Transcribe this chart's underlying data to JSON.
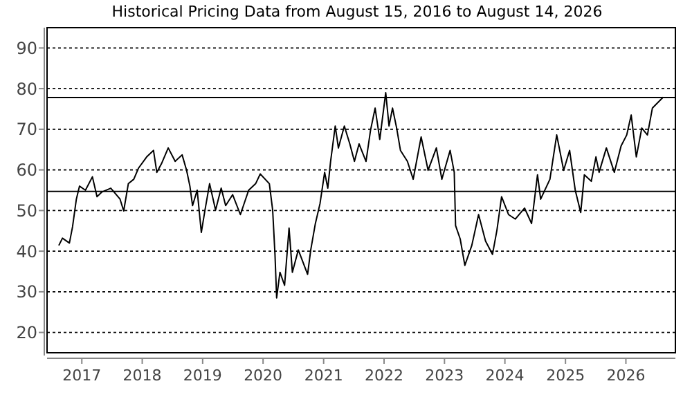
{
  "chart_data": {
    "type": "line",
    "title": "Historical Pricing Data from August 15, 2016 to August 14, 2026",
    "x": [
      "2016-08-15",
      "2016-09-06",
      "2016-10-18",
      "2016-11-06",
      "2016-11-29",
      "2016-12-18",
      "2017-01-23",
      "2017-03-06",
      "2017-04-03",
      "2017-04-30",
      "2017-06-25",
      "2017-08-20",
      "2017-09-11",
      "2017-10-09",
      "2017-11-11",
      "2017-12-09",
      "2018-01-28",
      "2018-03-10",
      "2018-03-30",
      "2018-04-27",
      "2018-06-07",
      "2018-07-19",
      "2018-08-30",
      "2018-09-26",
      "2018-10-16",
      "2018-11-01",
      "2018-11-29",
      "2018-12-24",
      "2019-01-15",
      "2019-02-12",
      "2019-03-20",
      "2019-04-23",
      "2019-05-20",
      "2019-07-01",
      "2019-08-17",
      "2019-10-06",
      "2019-11-17",
      "2019-12-15",
      "2020-02-08",
      "2020-02-28",
      "2020-03-13",
      "2020-03-23",
      "2020-04-12",
      "2020-05-10",
      "2020-06-06",
      "2020-06-26",
      "2020-08-01",
      "2020-09-26",
      "2020-10-15",
      "2020-11-12",
      "2020-12-10",
      "2021-01-07",
      "2021-01-26",
      "2021-02-12",
      "2021-03-12",
      "2021-03-31",
      "2021-05-06",
      "2021-06-08",
      "2021-07-06",
      "2021-08-03",
      "2021-09-14",
      "2021-10-11",
      "2021-11-08",
      "2021-12-06",
      "2022-01-11",
      "2022-01-31",
      "2022-02-21",
      "2022-03-18",
      "2022-04-10",
      "2022-05-22",
      "2022-06-26",
      "2022-08-13",
      "2022-09-24",
      "2022-11-13",
      "2022-12-16",
      "2023-02-04",
      "2023-03-01",
      "2023-03-09",
      "2023-04-06",
      "2023-05-04",
      "2023-06-15",
      "2023-07-26",
      "2023-09-06",
      "2023-10-18",
      "2023-11-14",
      "2023-12-12",
      "2024-01-23",
      "2024-03-04",
      "2024-04-29",
      "2024-06-10",
      "2024-07-16",
      "2024-08-04",
      "2024-09-29",
      "2024-11-09",
      "2024-12-21",
      "2025-01-26",
      "2025-03-01",
      "2025-04-03",
      "2025-04-25",
      "2025-06-06",
      "2025-07-04",
      "2025-07-23",
      "2025-09-05",
      "2025-10-23",
      "2025-12-03",
      "2026-01-06",
      "2026-02-02",
      "2026-03-05",
      "2026-04-07",
      "2026-05-11",
      "2026-06-10",
      "2026-08-14"
    ],
    "series": [
      {
        "color": "#000000",
        "values": [
          41.4,
          43.2,
          42,
          46,
          52.8,
          56,
          55,
          58.3,
          53.4,
          54.5,
          55.5,
          52.8,
          49.9,
          56.6,
          57.7,
          60.4,
          63.2,
          64.8,
          59.4,
          61.5,
          65.4,
          62.1,
          63.7,
          59.9,
          56,
          51.2,
          55,
          44.6,
          50.1,
          56.6,
          50.1,
          55.5,
          51.2,
          53.9,
          49,
          55,
          56.6,
          59,
          56.6,
          50.1,
          39.2,
          28.5,
          34.8,
          31.6,
          45.7,
          34.8,
          40.3,
          34.3,
          40.3,
          46.8,
          51.7,
          59.4,
          55.5,
          62.1,
          70.8,
          65.4,
          70.8,
          66.4,
          62.1,
          66.4,
          62.1,
          69.7,
          75.2,
          67.5,
          79,
          70.8,
          75.2,
          70.3,
          64.8,
          62.1,
          57.7,
          68.1,
          59.9,
          65.4,
          57.7,
          64.8,
          59.4,
          46.3,
          43,
          36.5,
          41.4,
          49,
          42.5,
          39.2,
          45.2,
          53.4,
          49,
          47.9,
          50.6,
          46.8,
          58.8,
          52.8,
          57.7,
          68.6,
          59.9,
          64.8,
          55,
          49.5,
          58.8,
          57.2,
          63.2,
          59.4,
          65.4,
          59.4,
          65.9,
          68.6,
          73.5,
          63.2,
          70.3,
          68.6,
          75.2,
          77.9
        ]
      }
    ],
    "xlim": [
      "2016-06-05",
      "2026-10-27"
    ],
    "xticks": [
      {
        "value": "2017-01-01",
        "label": "2017"
      },
      {
        "value": "2018-01-01",
        "label": "2018"
      },
      {
        "value": "2019-01-01",
        "label": "2019"
      },
      {
        "value": "2020-01-01",
        "label": "2020"
      },
      {
        "value": "2021-01-01",
        "label": "2021"
      },
      {
        "value": "2022-01-01",
        "label": "2022"
      },
      {
        "value": "2023-01-01",
        "label": "2023"
      },
      {
        "value": "2024-01-01",
        "label": "2024"
      },
      {
        "value": "2025-01-01",
        "label": "2025"
      },
      {
        "value": "2026-01-01",
        "label": "2026"
      }
    ],
    "ylim": [
      15,
      95
    ],
    "yticks": [
      20,
      30,
      40,
      50,
      60,
      70,
      80,
      90
    ],
    "ref_lines": [
      {
        "axis": "y",
        "value": 77.8,
        "color": "#000000",
        "line_style": "solid"
      },
      {
        "axis": "y",
        "value": 54.7,
        "color": "#000000",
        "line_style": "solid"
      }
    ],
    "grid": "y"
  }
}
